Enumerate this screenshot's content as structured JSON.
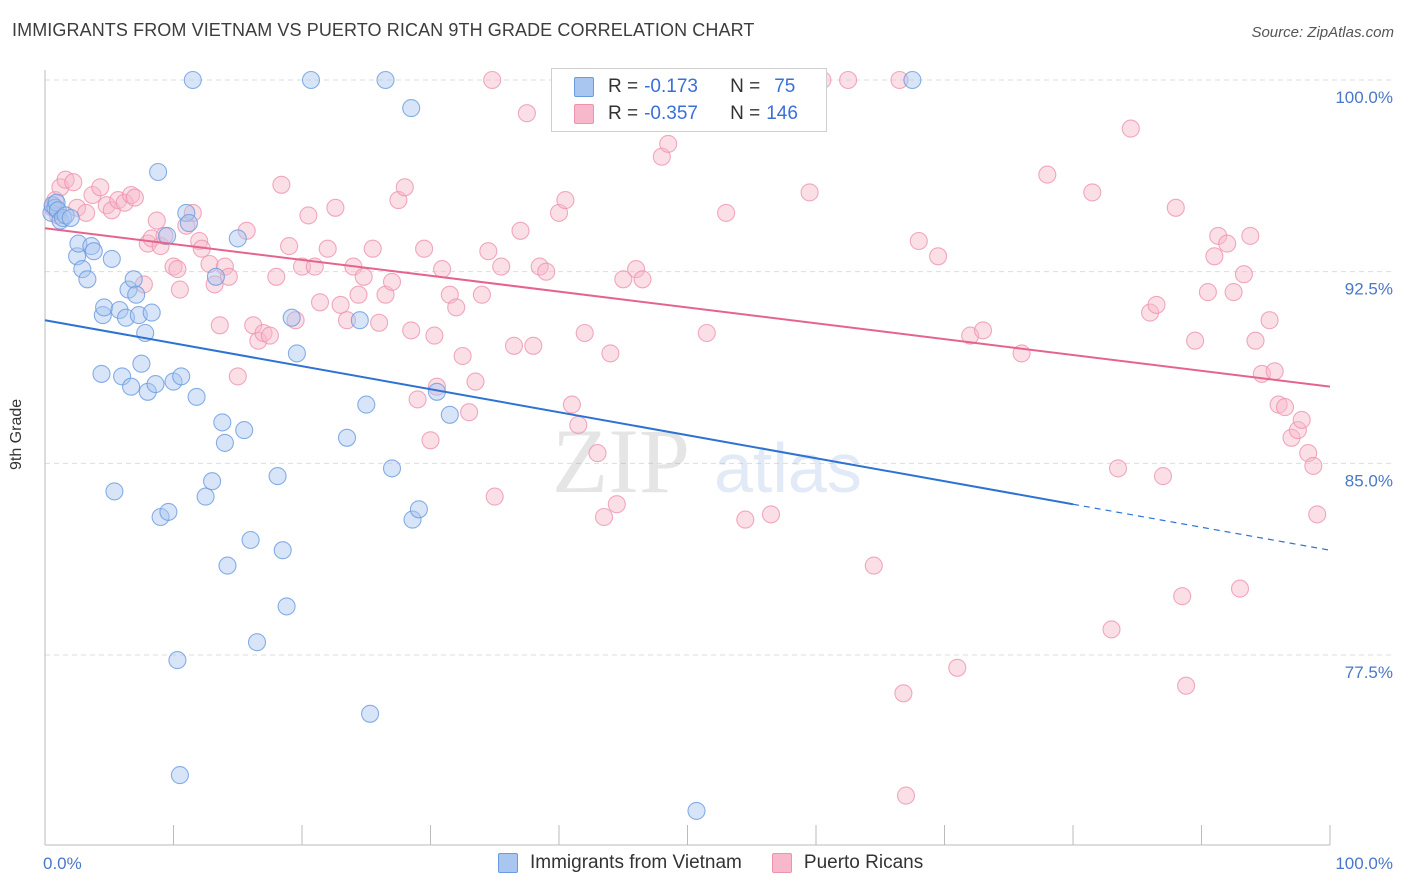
{
  "header": {
    "title": "IMMIGRANTS FROM VIETNAM VS PUERTO RICAN 9TH GRADE CORRELATION CHART",
    "source": "Source: ZipAtlas.com"
  },
  "colors": {
    "blue_fill": "#a9c6f0",
    "blue_stroke": "#6a9be0",
    "blue_line": "#2e72d2",
    "pink_fill": "#f6b8ca",
    "pink_stroke": "#ee93ae",
    "pink_line": "#e5648e",
    "grid": "#dddddd",
    "axis_text": "#4a78c8"
  },
  "legend": {
    "blue": {
      "r_label": "R =",
      "r_value": "-0.173",
      "n_label": "N =",
      "n_value": "75"
    },
    "pink": {
      "r_label": "R =",
      "r_value": "-0.357",
      "n_label": "N =",
      "n_value": "146"
    }
  },
  "bottom_legend": {
    "blue_label": "Immigrants from Vietnam",
    "pink_label": "Puerto Ricans"
  },
  "watermark": {
    "zip": "ZIP",
    "atlas": "atlas"
  },
  "chart_data": {
    "type": "scatter",
    "title": "IMMIGRANTS FROM VIETNAM VS PUERTO RICAN 9TH GRADE CORRELATION CHART",
    "xlabel": "",
    "ylabel": "9th Grade",
    "xlim": [
      0,
      100
    ],
    "ylim": [
      71.0,
      101.0
    ],
    "x_tick_labels": [
      "0.0%",
      "100.0%"
    ],
    "y_ticks": [
      100.0,
      92.5,
      85.0,
      77.5
    ],
    "y_tick_labels": [
      "100.0%",
      "92.5%",
      "85.0%",
      "77.5%"
    ],
    "series": [
      {
        "name": "Immigrants from Vietnam",
        "color": "blue",
        "trend": {
          "x_start": 0,
          "y_start": 90.6,
          "x_solid_end": 80,
          "y_solid_end": 83.4,
          "x_end": 100,
          "y_end": 81.6
        },
        "points": [
          [
            0.5,
            94.8
          ],
          [
            0.6,
            95.1
          ],
          [
            0.8,
            95.0
          ],
          [
            0.9,
            95.2
          ],
          [
            1.0,
            94.9
          ],
          [
            1.2,
            94.5
          ],
          [
            1.4,
            94.6
          ],
          [
            1.6,
            94.7
          ],
          [
            2.0,
            94.6
          ],
          [
            2.5,
            93.1
          ],
          [
            2.6,
            93.6
          ],
          [
            2.9,
            92.6
          ],
          [
            3.3,
            92.2
          ],
          [
            3.6,
            93.5
          ],
          [
            3.8,
            93.3
          ],
          [
            4.4,
            88.5
          ],
          [
            4.5,
            90.8
          ],
          [
            4.6,
            91.1
          ],
          [
            5.2,
            93.0
          ],
          [
            5.4,
            83.9
          ],
          [
            5.8,
            91.0
          ],
          [
            6.0,
            88.4
          ],
          [
            6.3,
            90.7
          ],
          [
            6.5,
            91.8
          ],
          [
            6.7,
            88.0
          ],
          [
            6.9,
            92.2
          ],
          [
            7.1,
            91.6
          ],
          [
            7.3,
            90.8
          ],
          [
            7.5,
            88.9
          ],
          [
            7.8,
            90.1
          ],
          [
            8.0,
            87.8
          ],
          [
            8.3,
            90.9
          ],
          [
            8.6,
            88.1
          ],
          [
            8.8,
            96.4
          ],
          [
            9.0,
            82.9
          ],
          [
            9.5,
            93.9
          ],
          [
            9.6,
            83.1
          ],
          [
            10.0,
            88.2
          ],
          [
            10.3,
            77.3
          ],
          [
            10.5,
            72.8
          ],
          [
            10.6,
            88.4
          ],
          [
            11.0,
            94.8
          ],
          [
            11.2,
            94.4
          ],
          [
            11.5,
            100.0
          ],
          [
            11.8,
            87.6
          ],
          [
            12.5,
            83.7
          ],
          [
            13.0,
            84.3
          ],
          [
            13.3,
            92.3
          ],
          [
            13.8,
            86.6
          ],
          [
            14.0,
            85.8
          ],
          [
            14.2,
            81.0
          ],
          [
            15.0,
            93.8
          ],
          [
            15.5,
            86.3
          ],
          [
            16.0,
            82.0
          ],
          [
            16.5,
            78.0
          ],
          [
            18.1,
            84.5
          ],
          [
            18.5,
            81.6
          ],
          [
            18.8,
            79.4
          ],
          [
            19.2,
            90.7
          ],
          [
            19.6,
            89.3
          ],
          [
            20.7,
            100.0
          ],
          [
            23.5,
            86.0
          ],
          [
            24.5,
            90.6
          ],
          [
            25.0,
            87.3
          ],
          [
            25.3,
            75.2
          ],
          [
            26.5,
            100.0
          ],
          [
            27.0,
            84.8
          ],
          [
            28.5,
            98.9
          ],
          [
            28.6,
            82.8
          ],
          [
            29.1,
            83.2
          ],
          [
            30.5,
            87.8
          ],
          [
            31.5,
            86.9
          ],
          [
            50.7,
            71.4
          ],
          [
            67.5,
            100.0
          ]
        ]
      },
      {
        "name": "Puerto Ricans",
        "color": "pink",
        "trend": {
          "x_start": 0,
          "y_start": 94.2,
          "x_end": 100,
          "y_end": 88.0
        },
        "points": [
          [
            0.6,
            95.0
          ],
          [
            0.8,
            95.3
          ],
          [
            1.0,
            94.7
          ],
          [
            1.2,
            95.8
          ],
          [
            1.6,
            96.1
          ],
          [
            2.2,
            96.0
          ],
          [
            2.5,
            95.0
          ],
          [
            3.2,
            94.8
          ],
          [
            3.7,
            95.5
          ],
          [
            4.3,
            95.8
          ],
          [
            4.8,
            95.1
          ],
          [
            5.2,
            94.9
          ],
          [
            5.7,
            95.3
          ],
          [
            6.2,
            95.2
          ],
          [
            6.7,
            95.5
          ],
          [
            7.0,
            95.4
          ],
          [
            7.7,
            92.0
          ],
          [
            8.0,
            93.6
          ],
          [
            8.3,
            93.8
          ],
          [
            8.7,
            94.5
          ],
          [
            9.0,
            93.5
          ],
          [
            9.3,
            93.9
          ],
          [
            10.0,
            92.7
          ],
          [
            10.3,
            92.6
          ],
          [
            10.5,
            91.8
          ],
          [
            11.0,
            94.3
          ],
          [
            11.5,
            94.8
          ],
          [
            12.0,
            93.7
          ],
          [
            12.2,
            93.4
          ],
          [
            12.8,
            92.8
          ],
          [
            13.2,
            92.0
          ],
          [
            13.6,
            90.4
          ],
          [
            14.0,
            92.7
          ],
          [
            14.3,
            92.3
          ],
          [
            15.0,
            88.4
          ],
          [
            15.7,
            94.1
          ],
          [
            16.2,
            90.4
          ],
          [
            16.6,
            89.8
          ],
          [
            17.0,
            90.1
          ],
          [
            17.5,
            90.0
          ],
          [
            18.0,
            92.3
          ],
          [
            18.4,
            95.9
          ],
          [
            19.0,
            93.5
          ],
          [
            19.5,
            90.6
          ],
          [
            20.0,
            92.7
          ],
          [
            20.5,
            94.7
          ],
          [
            21.0,
            92.7
          ],
          [
            21.4,
            91.3
          ],
          [
            22.0,
            93.4
          ],
          [
            22.6,
            95.0
          ],
          [
            23.0,
            91.2
          ],
          [
            23.5,
            90.6
          ],
          [
            24.0,
            92.7
          ],
          [
            24.4,
            91.6
          ],
          [
            24.8,
            92.3
          ],
          [
            25.5,
            93.4
          ],
          [
            26.0,
            90.5
          ],
          [
            26.5,
            91.6
          ],
          [
            27.0,
            92.1
          ],
          [
            27.5,
            95.3
          ],
          [
            28.0,
            95.8
          ],
          [
            28.5,
            90.2
          ],
          [
            29.0,
            87.5
          ],
          [
            29.5,
            93.4
          ],
          [
            30.0,
            85.9
          ],
          [
            30.3,
            90.0
          ],
          [
            30.5,
            88.0
          ],
          [
            30.9,
            92.6
          ],
          [
            31.5,
            91.6
          ],
          [
            32.0,
            91.1
          ],
          [
            32.5,
            89.2
          ],
          [
            33.0,
            87.0
          ],
          [
            33.5,
            88.2
          ],
          [
            34.0,
            91.6
          ],
          [
            34.5,
            93.3
          ],
          [
            34.8,
            100.0
          ],
          [
            35.0,
            83.7
          ],
          [
            35.5,
            92.7
          ],
          [
            36.5,
            89.6
          ],
          [
            37.0,
            94.1
          ],
          [
            37.5,
            98.7
          ],
          [
            38.0,
            89.6
          ],
          [
            38.5,
            92.7
          ],
          [
            39.0,
            92.5
          ],
          [
            40.0,
            94.8
          ],
          [
            40.5,
            95.3
          ],
          [
            41.0,
            87.3
          ],
          [
            41.5,
            86.5
          ],
          [
            42.0,
            90.1
          ],
          [
            43.0,
            85.4
          ],
          [
            43.5,
            82.9
          ],
          [
            44.0,
            89.3
          ],
          [
            44.5,
            83.4
          ],
          [
            45.0,
            92.2
          ],
          [
            46.0,
            92.6
          ],
          [
            46.5,
            92.2
          ],
          [
            47.5,
            100.0
          ],
          [
            48.0,
            97.0
          ],
          [
            48.5,
            97.5
          ],
          [
            49.0,
            100.0
          ],
          [
            51.0,
            100.0
          ],
          [
            51.5,
            90.1
          ],
          [
            53.0,
            94.8
          ],
          [
            54.5,
            82.8
          ],
          [
            56.5,
            83.0
          ],
          [
            59.5,
            95.6
          ],
          [
            60.5,
            100.0
          ],
          [
            62.5,
            100.0
          ],
          [
            64.5,
            81.0
          ],
          [
            66.5,
            100.0
          ],
          [
            66.8,
            76.0
          ],
          [
            67.0,
            72.0
          ],
          [
            68.0,
            93.7
          ],
          [
            69.5,
            93.1
          ],
          [
            71.0,
            77.0
          ],
          [
            72.0,
            90.0
          ],
          [
            73.0,
            90.2
          ],
          [
            76.0,
            89.3
          ],
          [
            78.0,
            96.3
          ],
          [
            81.5,
            95.6
          ],
          [
            83.0,
            78.5
          ],
          [
            83.5,
            84.8
          ],
          [
            84.5,
            98.1
          ],
          [
            86.0,
            90.9
          ],
          [
            86.5,
            91.2
          ],
          [
            87.0,
            84.5
          ],
          [
            88.0,
            95.0
          ],
          [
            88.5,
            79.8
          ],
          [
            88.8,
            76.3
          ],
          [
            89.5,
            89.8
          ],
          [
            90.5,
            91.7
          ],
          [
            91.0,
            93.1
          ],
          [
            91.3,
            93.9
          ],
          [
            92.0,
            93.6
          ],
          [
            92.5,
            91.7
          ],
          [
            93.0,
            80.1
          ],
          [
            93.3,
            92.4
          ],
          [
            93.8,
            93.9
          ],
          [
            94.2,
            89.8
          ],
          [
            94.7,
            88.5
          ],
          [
            95.3,
            90.6
          ],
          [
            95.7,
            88.6
          ],
          [
            96.0,
            87.3
          ],
          [
            96.5,
            87.2
          ],
          [
            97.0,
            86.0
          ],
          [
            97.5,
            86.3
          ],
          [
            97.8,
            86.7
          ],
          [
            98.3,
            85.4
          ],
          [
            98.7,
            84.9
          ],
          [
            99.0,
            83.0
          ]
        ]
      }
    ]
  }
}
